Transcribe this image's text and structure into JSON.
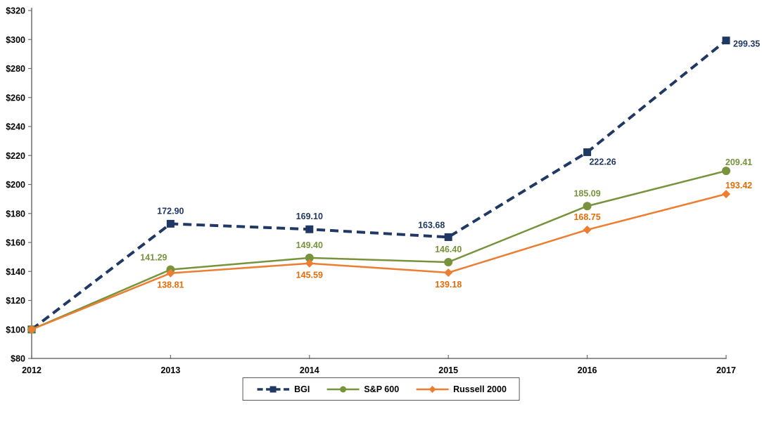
{
  "chart_data": {
    "type": "line",
    "x_categories": [
      "2012",
      "2013",
      "2014",
      "2015",
      "2016",
      "2017"
    ],
    "y_axis": {
      "min": 80,
      "max": 320,
      "step": 20,
      "prefix": "$"
    },
    "grid": false,
    "legend_position": "bottom-center",
    "axis_color": "#6E6E6E",
    "text_color": "#000000",
    "legend_border_color": "#595959",
    "background_color": "#FFFFFF",
    "series": [
      {
        "name": "BGI",
        "color": "#1F3864",
        "label_color": "#1F3864",
        "marker": "square",
        "line_style": "dashed",
        "line_width": 4,
        "values": [
          100,
          172.9,
          169.1,
          163.68,
          222.26,
          299.35
        ],
        "labels": [
          "",
          "172.90",
          "169.10",
          "163.68",
          "222.26",
          "299.35"
        ],
        "label_pos": [
          null,
          "above",
          "above",
          "above-left",
          "below-right",
          "right"
        ]
      },
      {
        "name": "S&P 600",
        "color": "#77933C",
        "label_color": "#77933C",
        "marker": "circle",
        "line_style": "solid",
        "line_width": 2.5,
        "values": [
          100,
          141.29,
          149.4,
          146.4,
          185.09,
          209.41
        ],
        "labels": [
          "",
          "141.29",
          "149.40",
          "146.40",
          "185.09",
          "209.41"
        ],
        "label_pos": [
          null,
          "above-left",
          "above",
          "above",
          "above",
          "above-right"
        ]
      },
      {
        "name": "Russell 2000",
        "color": "#ED7D31",
        "label_color": "#E36C09",
        "marker": "diamond",
        "line_style": "solid",
        "line_width": 2.5,
        "values": [
          100,
          138.81,
          145.59,
          139.18,
          168.75,
          193.42
        ],
        "labels": [
          "",
          "138.81",
          "145.59",
          "139.18",
          "168.75",
          "193.42"
        ],
        "label_pos": [
          null,
          "below",
          "below",
          "below",
          "above",
          "above-right"
        ]
      }
    ]
  }
}
